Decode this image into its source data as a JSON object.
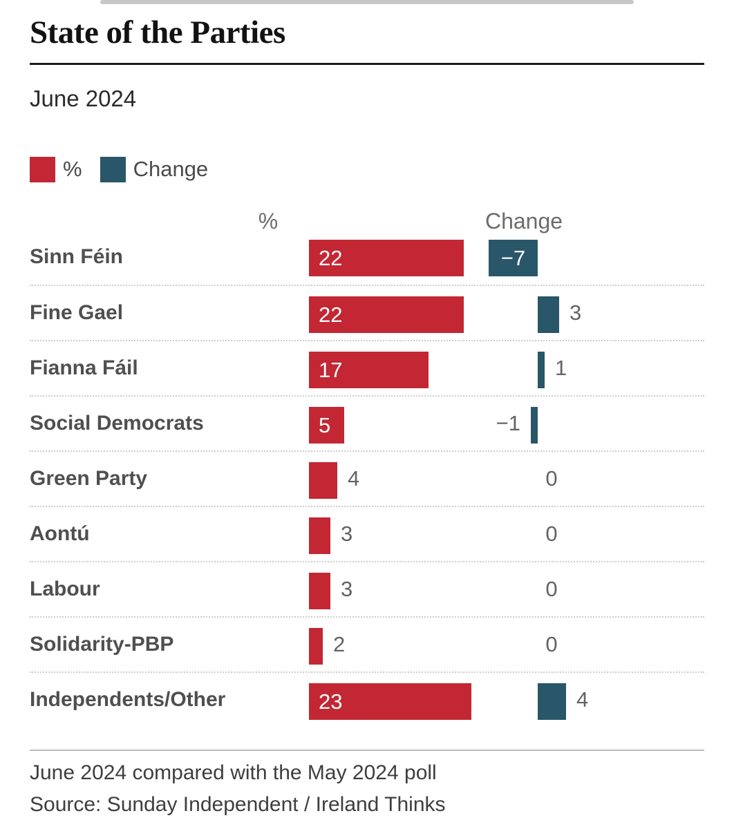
{
  "header": {
    "title": "State of the Parties",
    "subtitle": "June 2024"
  },
  "legend": [
    {
      "label": "%",
      "color": "#c22733"
    },
    {
      "label": "Change",
      "color": "#295668"
    }
  ],
  "columns": {
    "percent": "%",
    "change": "Change"
  },
  "chart_data": {
    "type": "bar",
    "title": "State of the Parties",
    "subtitle": "June 2024",
    "orientation": "horizontal",
    "categories": [
      "Sinn Féin",
      "Fine Gael",
      "Fianna Fáil",
      "Social Democrats",
      "Green Party",
      "Aontú",
      "Labour",
      "Solidarity-PBP",
      "Independents/Other"
    ],
    "series": [
      {
        "name": "%",
        "color": "#c22733",
        "values": [
          22,
          22,
          17,
          5,
          4,
          3,
          3,
          2,
          23
        ]
      },
      {
        "name": "Change",
        "color": "#295668",
        "values": [
          -7,
          3,
          1,
          -1,
          0,
          0,
          0,
          0,
          4
        ]
      }
    ],
    "value_labels_shown": true,
    "grid": "dotted-row-separators",
    "legend_position": "top-left"
  },
  "footer": {
    "note": "June 2024 compared with the May 2024 poll",
    "source": "Source: Sunday Independent / Ireland Thinks"
  }
}
